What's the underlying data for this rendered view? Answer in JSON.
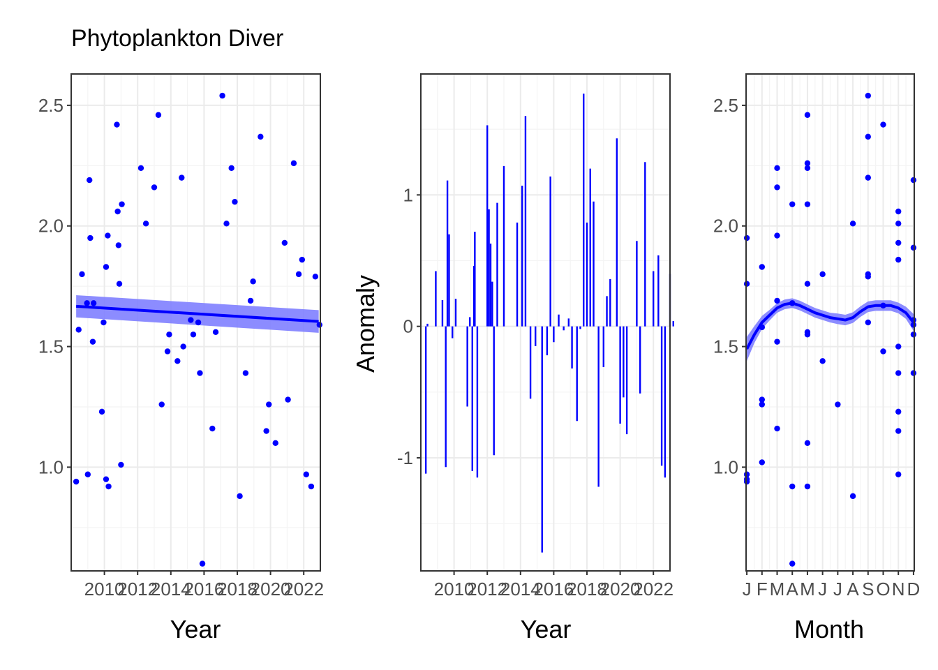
{
  "chart_data": [
    {
      "type": "scatter",
      "title": "Phytoplankton Diver",
      "xlabel": "Year",
      "ylabel": "",
      "xlim": [
        2008.0,
        2023.0
      ],
      "ylim": [
        0.57,
        2.63
      ],
      "x_ticks": [
        2010,
        2012,
        2014,
        2016,
        2018,
        2020,
        2022
      ],
      "x_tick_labels": [
        "2010",
        "2012",
        "2014",
        "2016",
        "2018",
        "2020",
        "2022"
      ],
      "y_ticks": [
        1.0,
        1.5,
        2.0,
        2.5
      ],
      "y_tick_labels": [
        "1.0",
        "1.5",
        "2.0",
        "2.5"
      ],
      "series": [
        {
          "points": [
            [
              2008.3,
              0.94
            ],
            [
              2008.45,
              1.57
            ],
            [
              2008.65,
              1.8
            ],
            [
              2009.0,
              0.97
            ],
            [
              2008.95,
              1.68
            ],
            [
              2009.1,
              2.19
            ],
            [
              2009.15,
              1.95
            ],
            [
              2009.3,
              1.52
            ],
            [
              2009.35,
              1.68
            ],
            [
              2009.85,
              1.23
            ],
            [
              2009.95,
              1.6
            ],
            [
              2010.1,
              0.95
            ],
            [
              2010.1,
              1.83
            ],
            [
              2010.2,
              1.96
            ],
            [
              2010.25,
              0.92
            ],
            [
              2010.75,
              2.42
            ],
            [
              2010.8,
              2.06
            ],
            [
              2010.85,
              1.92
            ],
            [
              2010.9,
              1.76
            ],
            [
              2011.0,
              1.01
            ],
            [
              2011.05,
              2.09
            ],
            [
              2012.2,
              2.24
            ],
            [
              2012.5,
              2.01
            ],
            [
              2013.0,
              2.16
            ],
            [
              2013.25,
              2.46
            ],
            [
              2013.45,
              1.26
            ],
            [
              2013.8,
              1.48
            ],
            [
              2013.9,
              1.55
            ],
            [
              2014.4,
              1.44
            ],
            [
              2014.65,
              2.2
            ],
            [
              2014.75,
              1.5
            ],
            [
              2015.2,
              1.61
            ],
            [
              2015.35,
              1.55
            ],
            [
              2015.65,
              1.6
            ],
            [
              2015.75,
              1.39
            ],
            [
              2015.9,
              0.6
            ],
            [
              2016.5,
              1.16
            ],
            [
              2016.7,
              1.56
            ],
            [
              2017.1,
              2.54
            ],
            [
              2017.35,
              2.01
            ],
            [
              2017.65,
              2.24
            ],
            [
              2017.85,
              2.1
            ],
            [
              2018.15,
              0.88
            ],
            [
              2018.5,
              1.39
            ],
            [
              2018.8,
              1.69
            ],
            [
              2018.95,
              1.77
            ],
            [
              2019.4,
              2.37
            ],
            [
              2019.75,
              1.15
            ],
            [
              2019.9,
              1.26
            ],
            [
              2020.3,
              1.1
            ],
            [
              2020.85,
              1.93
            ],
            [
              2021.05,
              1.28
            ],
            [
              2021.4,
              2.26
            ],
            [
              2021.7,
              1.8
            ],
            [
              2021.9,
              1.86
            ],
            [
              2022.15,
              0.97
            ],
            [
              2022.45,
              0.92
            ],
            [
              2022.7,
              1.79
            ],
            [
              2022.95,
              1.59
            ]
          ]
        }
      ],
      "trend": {
        "x": [
          2008.3,
          2022.9
        ],
        "y": [
          1.667,
          1.604
        ],
        "band_upper": [
          1.713,
          1.651
        ],
        "band_lower": [
          1.621,
          1.557
        ]
      }
    },
    {
      "type": "bar",
      "xlabel": "Year",
      "ylabel": "Anomaly",
      "xlim": [
        2008.0,
        2023.0
      ],
      "ylim": [
        -1.86,
        1.92
      ],
      "x_ticks": [
        2010,
        2012,
        2014,
        2016,
        2018,
        2020,
        2022
      ],
      "x_tick_labels": [
        "2010",
        "2012",
        "2014",
        "2016",
        "2018",
        "2020",
        "2022"
      ],
      "y_ticks": [
        -1,
        0,
        1
      ],
      "y_tick_labels": [
        "-1",
        "0",
        "1"
      ],
      "series": [
        {
          "points": [
            [
              2008.3,
              -1.12
            ],
            [
              2008.4,
              0.02
            ],
            [
              2008.9,
              0.42
            ],
            [
              2009.3,
              0.2
            ],
            [
              2009.5,
              -1.07
            ],
            [
              2009.6,
              1.11
            ],
            [
              2009.7,
              0.7
            ],
            [
              2009.9,
              -0.09
            ],
            [
              2010.1,
              0.21
            ],
            [
              2010.8,
              -0.61
            ],
            [
              2010.95,
              0.07
            ],
            [
              2011.1,
              -1.1
            ],
            [
              2011.2,
              0.46
            ],
            [
              2011.25,
              0.72
            ],
            [
              2011.4,
              -1.15
            ],
            [
              2012.0,
              1.53
            ],
            [
              2012.1,
              0.89
            ],
            [
              2012.2,
              0.63
            ],
            [
              2012.3,
              0.34
            ],
            [
              2012.4,
              -0.98
            ],
            [
              2012.6,
              0.94
            ],
            [
              2013.0,
              1.22
            ],
            [
              2013.8,
              0.79
            ],
            [
              2014.1,
              1.07
            ],
            [
              2014.3,
              1.6
            ],
            [
              2014.6,
              -0.55
            ],
            [
              2014.9,
              -0.15
            ],
            [
              2015.3,
              -1.72
            ],
            [
              2015.6,
              -0.22
            ],
            [
              2015.8,
              1.14
            ],
            [
              2016.0,
              -0.12
            ],
            [
              2016.3,
              0.09
            ],
            [
              2016.6,
              -0.03
            ],
            [
              2016.9,
              0.06
            ],
            [
              2017.1,
              -0.32
            ],
            [
              2017.4,
              -0.72
            ],
            [
              2017.6,
              -0.02
            ],
            [
              2017.8,
              1.77
            ],
            [
              2018.0,
              0.79
            ],
            [
              2018.2,
              1.2
            ],
            [
              2018.4,
              0.95
            ],
            [
              2018.7,
              -1.22
            ],
            [
              2019.0,
              -0.31
            ],
            [
              2019.2,
              0.23
            ],
            [
              2019.4,
              0.36
            ],
            [
              2019.8,
              1.43
            ],
            [
              2020.0,
              -0.74
            ],
            [
              2020.2,
              -0.54
            ],
            [
              2020.4,
              -0.82
            ],
            [
              2021.0,
              0.65
            ],
            [
              2021.2,
              -0.51
            ],
            [
              2021.5,
              1.25
            ],
            [
              2022.0,
              0.42
            ],
            [
              2022.3,
              0.54
            ],
            [
              2022.5,
              -1.06
            ],
            [
              2022.7,
              -1.15
            ],
            [
              2023.0,
              0.4
            ],
            [
              2023.2,
              0.04
            ]
          ]
        }
      ]
    },
    {
      "type": "scatter",
      "xlabel": "Month",
      "ylabel": "",
      "xlim": [
        0.95,
        12.05
      ],
      "ylim": [
        0.57,
        2.63
      ],
      "x_ticks": [
        1,
        2,
        3,
        4,
        5,
        6,
        7,
        8,
        9,
        10,
        11,
        12
      ],
      "x_tick_labels": [
        "J",
        "F",
        "M",
        "A",
        "M",
        "J",
        "J",
        "A",
        "S",
        "O",
        "N",
        "D"
      ],
      "y_ticks": [
        1.0,
        1.5,
        2.0,
        2.5
      ],
      "y_tick_labels": [
        "1.0",
        "1.5",
        "2.0",
        "2.5"
      ],
      "series": [
        {
          "points": [
            [
              1,
              1.95
            ],
            [
              1,
              1.76
            ],
            [
              1,
              0.97
            ],
            [
              1,
              0.95
            ],
            [
              1,
              0.94
            ],
            [
              2,
              1.83
            ],
            [
              2,
              1.58
            ],
            [
              2,
              1.28
            ],
            [
              2,
              1.26
            ],
            [
              2,
              1.02
            ],
            [
              3,
              2.24
            ],
            [
              3,
              2.16
            ],
            [
              3,
              1.96
            ],
            [
              3,
              1.69
            ],
            [
              3,
              1.52
            ],
            [
              3,
              1.16
            ],
            [
              4,
              2.09
            ],
            [
              4,
              1.68
            ],
            [
              4,
              0.92
            ],
            [
              4,
              0.6
            ],
            [
              5,
              2.46
            ],
            [
              5,
              2.26
            ],
            [
              5,
              2.24
            ],
            [
              5,
              2.09
            ],
            [
              5,
              1.76
            ],
            [
              5,
              1.56
            ],
            [
              5,
              1.55
            ],
            [
              5,
              1.1
            ],
            [
              5,
              0.92
            ],
            [
              6,
              1.8
            ],
            [
              6,
              1.44
            ],
            [
              7,
              1.26
            ],
            [
              8,
              2.01
            ],
            [
              8,
              0.88
            ],
            [
              9,
              2.54
            ],
            [
              9,
              2.37
            ],
            [
              9,
              2.2
            ],
            [
              9,
              1.8
            ],
            [
              9,
              1.79
            ],
            [
              9,
              1.6
            ],
            [
              10,
              2.42
            ],
            [
              10,
              1.67
            ],
            [
              10,
              1.48
            ],
            [
              11,
              2.06
            ],
            [
              11,
              2.01
            ],
            [
              11,
              1.93
            ],
            [
              11,
              1.86
            ],
            [
              11,
              1.5
            ],
            [
              11,
              1.39
            ],
            [
              11,
              1.23
            ],
            [
              11,
              1.15
            ],
            [
              11,
              0.97
            ],
            [
              12,
              2.19
            ],
            [
              12,
              1.91
            ],
            [
              12,
              1.61
            ],
            [
              12,
              1.59
            ],
            [
              12,
              1.55
            ],
            [
              12,
              1.39
            ]
          ]
        }
      ],
      "trend": {
        "x": [
          1.0,
          1.5,
          2.0,
          2.5,
          3.0,
          3.5,
          4.0,
          4.5,
          5.0,
          5.5,
          6.0,
          6.5,
          7.0,
          7.5,
          8.0,
          8.5,
          9.0,
          9.5,
          10.0,
          10.5,
          11.0,
          11.5,
          12.0
        ],
        "y": [
          1.49,
          1.55,
          1.6,
          1.63,
          1.66,
          1.675,
          1.68,
          1.67,
          1.655,
          1.64,
          1.63,
          1.62,
          1.615,
          1.61,
          1.62,
          1.645,
          1.665,
          1.67,
          1.67,
          1.67,
          1.66,
          1.64,
          1.6
        ],
        "band_width": [
          0.05,
          0.035,
          0.027,
          0.022,
          0.02,
          0.02,
          0.02,
          0.02,
          0.02,
          0.02,
          0.02,
          0.02,
          0.022,
          0.022,
          0.022,
          0.022,
          0.022,
          0.022,
          0.022,
          0.022,
          0.022,
          0.025,
          0.035
        ]
      }
    }
  ],
  "colors": {
    "marks": "#0000ff",
    "band": "#8080ff",
    "grid_major": "#ebebeb",
    "grid_minor": "#f4f4f4",
    "panel_border": "#333333",
    "tick_text": "#4d4d4d"
  }
}
